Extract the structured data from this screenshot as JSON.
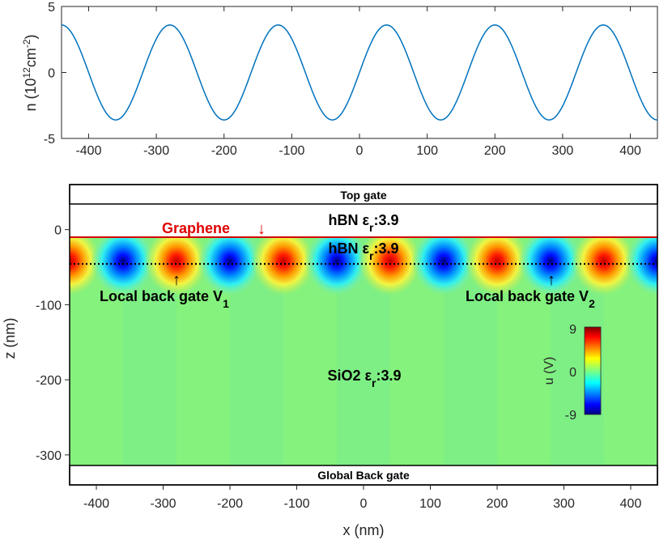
{
  "chart_data": [
    {
      "type": "line",
      "ylabel": "n (10",
      "ylabel_sup1": "12",
      "ylabel_mid": "cm",
      "ylabel_sup2": "-2",
      "ylabel_end": ")",
      "xlim": [
        -440,
        440
      ],
      "ylim": [
        -5,
        5
      ],
      "xticks": [
        -400,
        -300,
        -200,
        -100,
        0,
        100,
        200,
        300,
        400
      ],
      "yticks": [
        -5,
        0,
        5
      ],
      "series": [
        {
          "name": "n",
          "amplitude": 3.6,
          "period_nm": 160,
          "peak_x_nm": 40,
          "color": "#0072BD"
        }
      ]
    },
    {
      "type": "heatmap",
      "xlabel": "x (nm)",
      "ylabel": "z (nm)",
      "xlim": [
        -440,
        440
      ],
      "ylim": [
        -340,
        60
      ],
      "xticks": [
        -400,
        -300,
        -200,
        -100,
        0,
        100,
        200,
        300,
        400
      ],
      "yticks": [
        -300,
        -200,
        -100,
        0
      ],
      "colorbar": {
        "label": "u (V)",
        "ticks": [
          9,
          0,
          -9
        ],
        "range": [
          -9,
          9
        ]
      },
      "layers": {
        "top_gate": "Top gate",
        "hbn_upper": "hBN ε",
        "hbn_upper_sub": "r",
        "hbn_upper_val": ":3.9",
        "graphene": "Graphene",
        "graphene_arrow": "↓",
        "hbn_lower": "hBN ε",
        "hbn_lower_sub": "r",
        "hbn_lower_val": ":3.9",
        "sio2": "SiO2 ε",
        "sio2_sub": "r",
        "sio2_val": ":3.9",
        "back_gate": "Global Back gate"
      },
      "annotations": {
        "gate1": "Local back gate V",
        "gate1_sub": "1",
        "gate2": "Local back gate V",
        "gate2_sub": "2",
        "arrow": "↑"
      },
      "electrode_z_nm": -40,
      "graphene_z_nm": 0,
      "colors": {
        "graphene_line": "#d40000",
        "graphene_text": "#e00000"
      }
    }
  ]
}
